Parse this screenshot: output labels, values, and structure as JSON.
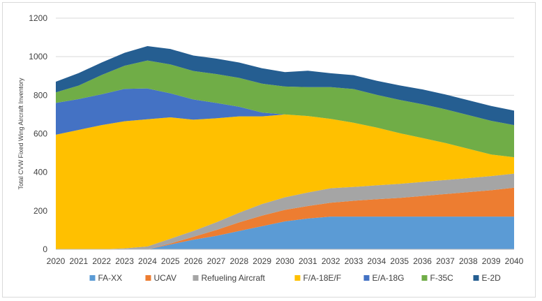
{
  "chart_data": {
    "type": "area",
    "stacked": true,
    "title": "",
    "xlabel": "",
    "ylabel": "Total CVW Fixed Wing Aircraft Inventory",
    "ylim": [
      0,
      1200
    ],
    "yticks": [
      0,
      200,
      400,
      600,
      800,
      1000,
      1200
    ],
    "grid": "horizontal",
    "legend_position": "bottom",
    "x": [
      "2020",
      "2021",
      "2022",
      "2023",
      "2024",
      "2025",
      "2026",
      "2027",
      "2028",
      "2029",
      "2030",
      "2031",
      "2032",
      "2033",
      "2034",
      "2035",
      "2036",
      "2037",
      "2038",
      "2039",
      "2040"
    ],
    "series": [
      {
        "name": "FA-XX",
        "color": "#5B9BD5",
        "values": [
          0,
          0,
          0,
          0,
          0,
          25,
          50,
          70,
          95,
          120,
          145,
          160,
          170,
          170,
          170,
          170,
          170,
          170,
          170,
          170,
          170
        ]
      },
      {
        "name": "UCAV",
        "color": "#ED7D31",
        "values": [
          0,
          0,
          0,
          0,
          0,
          5,
          15,
          30,
          45,
          55,
          60,
          65,
          72,
          82,
          90,
          97,
          107,
          117,
          127,
          137,
          150
        ]
      },
      {
        "name": "Refueling Aircraft",
        "color": "#A5A5A5",
        "values": [
          0,
          0,
          0,
          5,
          15,
          25,
          30,
          40,
          50,
          60,
          65,
          70,
          75,
          72,
          72,
          73,
          73,
          73,
          73,
          73,
          73
        ]
      },
      {
        "name": "F/A-18E/F",
        "color": "#FFC000",
        "values": [
          595,
          620,
          645,
          660,
          660,
          630,
          578,
          540,
          500,
          455,
          430,
          397,
          360,
          333,
          300,
          263,
          228,
          192,
          152,
          112,
          85
        ]
      },
      {
        "name": "E/A-18G",
        "color": "#4472C4",
        "values": [
          165,
          160,
          160,
          168,
          160,
          125,
          105,
          80,
          50,
          20,
          0,
          0,
          0,
          0,
          0,
          0,
          0,
          0,
          0,
          0,
          0
        ]
      },
      {
        "name": "F-35C",
        "color": "#70AD47",
        "values": [
          55,
          70,
          100,
          120,
          145,
          150,
          148,
          150,
          150,
          150,
          145,
          150,
          165,
          175,
          170,
          173,
          175,
          175,
          175,
          175,
          167
        ]
      },
      {
        "name": "E-2D",
        "color": "#255E91",
        "values": [
          55,
          65,
          65,
          67,
          75,
          80,
          80,
          80,
          80,
          80,
          75,
          85,
          72,
          72,
          73,
          75,
          77,
          77,
          77,
          77,
          75
        ]
      }
    ]
  }
}
